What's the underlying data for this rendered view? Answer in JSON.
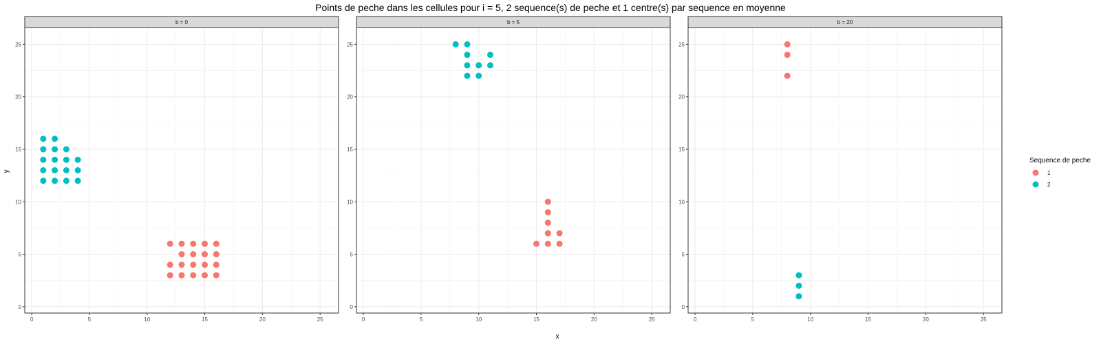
{
  "chart_data": {
    "type": "scatter",
    "title": "Points de peche dans les cellules pour i = 5, 2 sequence(s) de peche et 1 centre(s) par sequence en moyenne",
    "xlabel": "x",
    "ylabel": "y",
    "xlim": [
      -0.6,
      26.6
    ],
    "ylim": [
      -0.6,
      26.6
    ],
    "x_ticks": [
      0,
      5,
      10,
      15,
      20,
      25
    ],
    "y_ticks": [
      0,
      5,
      10,
      15,
      20,
      25
    ],
    "grid": true,
    "legend": {
      "title": "Sequence de peche",
      "position": "right",
      "entries": [
        {
          "label": "1",
          "color": "#F8766D"
        },
        {
          "label": "2",
          "color": "#00BFC4"
        }
      ]
    },
    "facets": [
      {
        "label": "b = 0",
        "series": [
          {
            "name": "1",
            "color": "#F8766D",
            "points": [
              [
                12,
                3
              ],
              [
                13,
                3
              ],
              [
                14,
                3
              ],
              [
                15,
                3
              ],
              [
                16,
                3
              ],
              [
                12,
                4
              ],
              [
                13,
                4
              ],
              [
                14,
                4
              ],
              [
                15,
                4
              ],
              [
                16,
                4
              ],
              [
                13,
                5
              ],
              [
                14,
                5
              ],
              [
                15,
                5
              ],
              [
                16,
                5
              ],
              [
                12,
                6
              ],
              [
                13,
                6
              ],
              [
                14,
                6
              ],
              [
                15,
                6
              ],
              [
                16,
                6
              ]
            ]
          },
          {
            "name": "2",
            "color": "#00BFC4",
            "points": [
              [
                1,
                12
              ],
              [
                2,
                12
              ],
              [
                3,
                12
              ],
              [
                4,
                12
              ],
              [
                1,
                13
              ],
              [
                2,
                13
              ],
              [
                3,
                13
              ],
              [
                4,
                13
              ],
              [
                1,
                14
              ],
              [
                2,
                14
              ],
              [
                3,
                14
              ],
              [
                4,
                14
              ],
              [
                1,
                15
              ],
              [
                2,
                15
              ],
              [
                3,
                15
              ],
              [
                1,
                16
              ],
              [
                2,
                16
              ]
            ]
          }
        ]
      },
      {
        "label": "b = 5",
        "series": [
          {
            "name": "1",
            "color": "#F8766D",
            "points": [
              [
                15,
                6
              ],
              [
                16,
                6
              ],
              [
                17,
                6
              ],
              [
                16,
                7
              ],
              [
                17,
                7
              ],
              [
                16,
                8
              ],
              [
                16,
                9
              ],
              [
                16,
                10
              ]
            ]
          },
          {
            "name": "2",
            "color": "#00BFC4",
            "points": [
              [
                9,
                22
              ],
              [
                10,
                22
              ],
              [
                9,
                23
              ],
              [
                10,
                23
              ],
              [
                11,
                23
              ],
              [
                9,
                24
              ],
              [
                11,
                24
              ],
              [
                8,
                25
              ],
              [
                9,
                25
              ]
            ]
          }
        ]
      },
      {
        "label": "b = 20",
        "series": [
          {
            "name": "1",
            "color": "#F8766D",
            "points": [
              [
                8,
                22
              ],
              [
                8,
                24
              ],
              [
                8,
                25
              ]
            ]
          },
          {
            "name": "2",
            "color": "#00BFC4",
            "points": [
              [
                9,
                1
              ],
              [
                9,
                2
              ],
              [
                9,
                3
              ]
            ]
          }
        ]
      }
    ]
  }
}
